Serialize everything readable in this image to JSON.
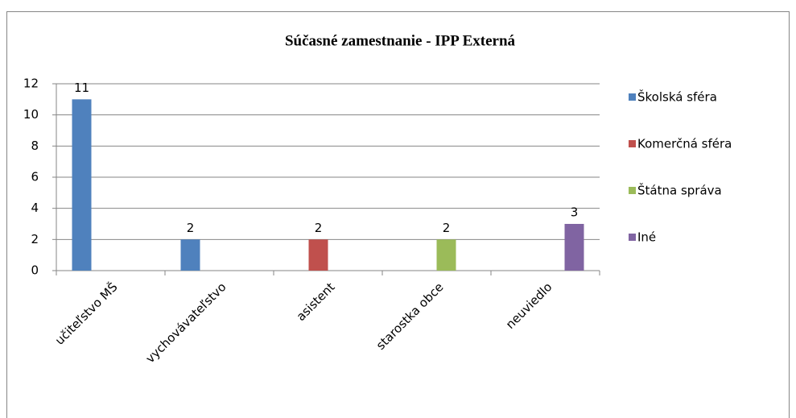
{
  "chart_data": {
    "type": "bar",
    "title": "Súčasné zamestnanie  - IPP Externá",
    "categories": [
      "učiteľstvo MŠ",
      "vychovávateľstvo",
      "asistent",
      "starostka obce",
      "neuviedlo"
    ],
    "series": [
      {
        "name": "Školská sféra",
        "color": "#4f81bd",
        "values": [
          11,
          2,
          null,
          null,
          null
        ]
      },
      {
        "name": "Komerčná sféra",
        "color": "#c0504d",
        "values": [
          null,
          null,
          2,
          null,
          null
        ]
      },
      {
        "name": "Štátna správa",
        "color": "#9bbb59",
        "values": [
          null,
          null,
          null,
          2,
          null
        ]
      },
      {
        "name": "Iné",
        "color": "#8064a2",
        "values": [
          null,
          null,
          null,
          null,
          3
        ]
      }
    ],
    "ylim": [
      0,
      12
    ],
    "yticks": [
      0,
      2,
      4,
      6,
      8,
      10,
      12
    ],
    "grid": true,
    "legend": "right"
  }
}
